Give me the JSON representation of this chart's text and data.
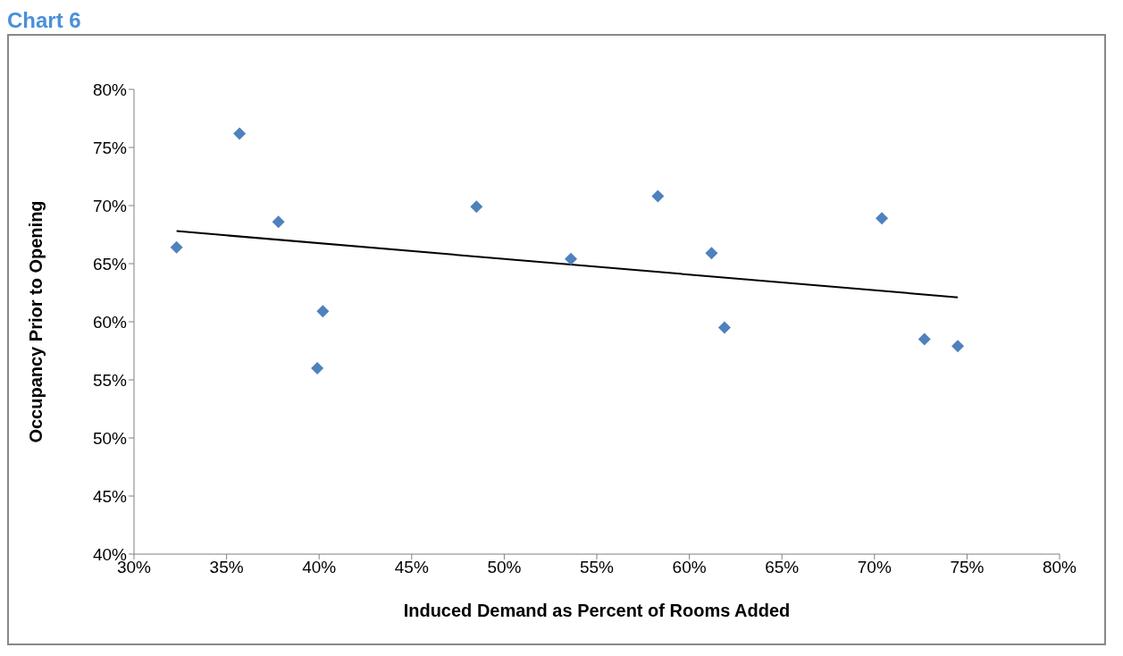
{
  "chart_data": {
    "type": "scatter",
    "title": "Chart 6",
    "xlabel": "Induced Demand as Percent of Rooms Added",
    "ylabel": "Occupancy Prior to Opening",
    "xlim": [
      30,
      80
    ],
    "xticks": [
      {
        "value": 30,
        "label": "30%"
      },
      {
        "value": 35,
        "label": "35%"
      },
      {
        "value": 40,
        "label": "40%"
      },
      {
        "value": 45,
        "label": "45%"
      },
      {
        "value": 50,
        "label": "50%"
      },
      {
        "value": 55,
        "label": "55%"
      },
      {
        "value": 60,
        "label": "60%"
      },
      {
        "value": 65,
        "label": "65%"
      },
      {
        "value": 70,
        "label": "70%"
      },
      {
        "value": 75,
        "label": "75%"
      },
      {
        "value": 80,
        "label": "80%"
      }
    ],
    "ylim": [
      40,
      80
    ],
    "yticks": [
      {
        "value": 40,
        "label": "40%"
      },
      {
        "value": 45,
        "label": "45%"
      },
      {
        "value": 50,
        "label": "50%"
      },
      {
        "value": 55,
        "label": "55%"
      },
      {
        "value": 60,
        "label": "60%"
      },
      {
        "value": 65,
        "label": "65%"
      },
      {
        "value": 70,
        "label": "70%"
      },
      {
        "value": 75,
        "label": "75%"
      },
      {
        "value": 80,
        "label": "80%"
      }
    ],
    "grid": false,
    "legend": false,
    "marker": "diamond",
    "series": [
      {
        "color": "#4f81bd",
        "x": [
          32.3,
          35.7,
          37.8,
          40.2,
          39.9,
          48.5,
          53.6,
          58.3,
          61.2,
          61.9,
          70.4,
          72.7,
          74.5
        ],
        "values": [
          66.4,
          76.2,
          68.6,
          60.9,
          56.0,
          69.9,
          65.4,
          70.8,
          65.9,
          59.5,
          68.9,
          58.5,
          57.9
        ]
      },
      {
        "type": "line",
        "color": "#000000",
        "marker": "none",
        "x": [
          32.3,
          74.5
        ],
        "values": [
          67.8,
          62.1
        ]
      }
    ]
  }
}
